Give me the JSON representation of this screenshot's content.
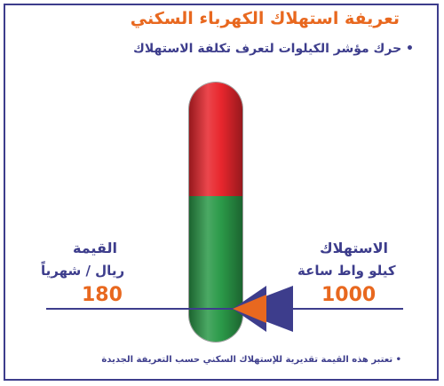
{
  "title": "تعريفة استهلاك الكهرباء السكني",
  "instruction": "• حرك مؤشر الكيلوات لتعرف تكلفة الاستهلاك",
  "value_section": {
    "heading": "القيمة",
    "unit": "ريال / شهرياً",
    "amount": "180"
  },
  "consumption_section": {
    "heading": "الاستهلاك",
    "unit": "كيلو واط ساعة",
    "amount": "1000"
  },
  "footnote": "• تعتبر هذه القيمة تقديرية للإستهلاك السكني حسب التعريفة الجديدة",
  "colors": {
    "title_orange": "#e8681f",
    "text_navy": "#3d3d8c",
    "meter_red": "#e8262d",
    "meter_green": "#2b9a49"
  },
  "icons": [
    "kilowatt-pointer-icon"
  ]
}
